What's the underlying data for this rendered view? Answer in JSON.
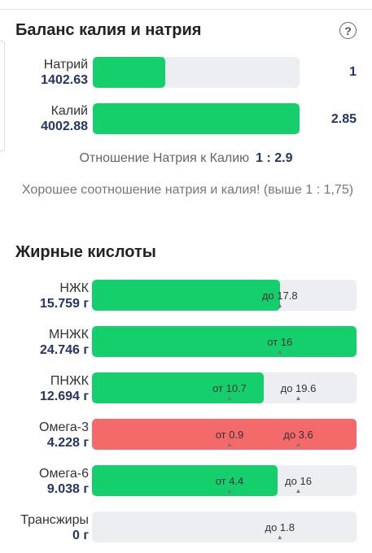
{
  "colors": {
    "green": "#14cf6c",
    "red": "#f46a6a",
    "track": "#eceef1",
    "value": "#24346b"
  },
  "balance": {
    "title": "Баланс калия и натрия",
    "help_icon": "question-circle-icon",
    "help_glyph": "?",
    "sodium": {
      "name": "Натрий",
      "value": "1402.63",
      "ratio": "1",
      "fill_fraction": 0.35
    },
    "potassium": {
      "name": "Калий",
      "value": "4002.88",
      "ratio": "2.85",
      "fill_fraction": 1.0
    },
    "ratio_label": "Отношение Натрия к Калию",
    "ratio_value": "1 : 2.9",
    "ratio_note": "Хорошее соотношение натрия и калия! (выше 1 : 1,75)"
  },
  "fatty_acids": {
    "title": "Жирные кислоты",
    "tick_glyph": "▲",
    "items": [
      {
        "name": "НЖК",
        "value": "15.759 г",
        "status": "ok",
        "fill_fraction": 0.71,
        "marks": [
          {
            "label": "до 17.8",
            "position_fraction": 0.71
          }
        ]
      },
      {
        "name": "МНЖК",
        "value": "24.746 г",
        "status": "ok",
        "fill_fraction": 1.0,
        "marks": [
          {
            "label": "от 16",
            "position_fraction": 0.71
          }
        ]
      },
      {
        "name": "ПНЖК",
        "value": "12.694 г",
        "status": "ok",
        "fill_fraction": 0.65,
        "marks": [
          {
            "label": "от 10.7",
            "position_fraction": 0.52
          },
          {
            "label": "до 19.6",
            "position_fraction": 0.78
          }
        ]
      },
      {
        "name": "Омега-3",
        "value": "4.228 г",
        "status": "bad",
        "fill_fraction": 1.0,
        "marks": [
          {
            "label": "от 0.9",
            "position_fraction": 0.52
          },
          {
            "label": "до 3.6",
            "position_fraction": 0.78
          }
        ]
      },
      {
        "name": "Омега-6",
        "value": "9.038 г",
        "status": "ok",
        "fill_fraction": 0.7,
        "marks": [
          {
            "label": "от 4.4",
            "position_fraction": 0.52
          },
          {
            "label": "до 16",
            "position_fraction": 0.78
          }
        ]
      },
      {
        "name": "Трансжиры",
        "value": "0 г",
        "status": "ok",
        "fill_fraction": 0,
        "marks": [
          {
            "label": "до 1.8",
            "position_fraction": 0.71
          }
        ]
      }
    ]
  }
}
